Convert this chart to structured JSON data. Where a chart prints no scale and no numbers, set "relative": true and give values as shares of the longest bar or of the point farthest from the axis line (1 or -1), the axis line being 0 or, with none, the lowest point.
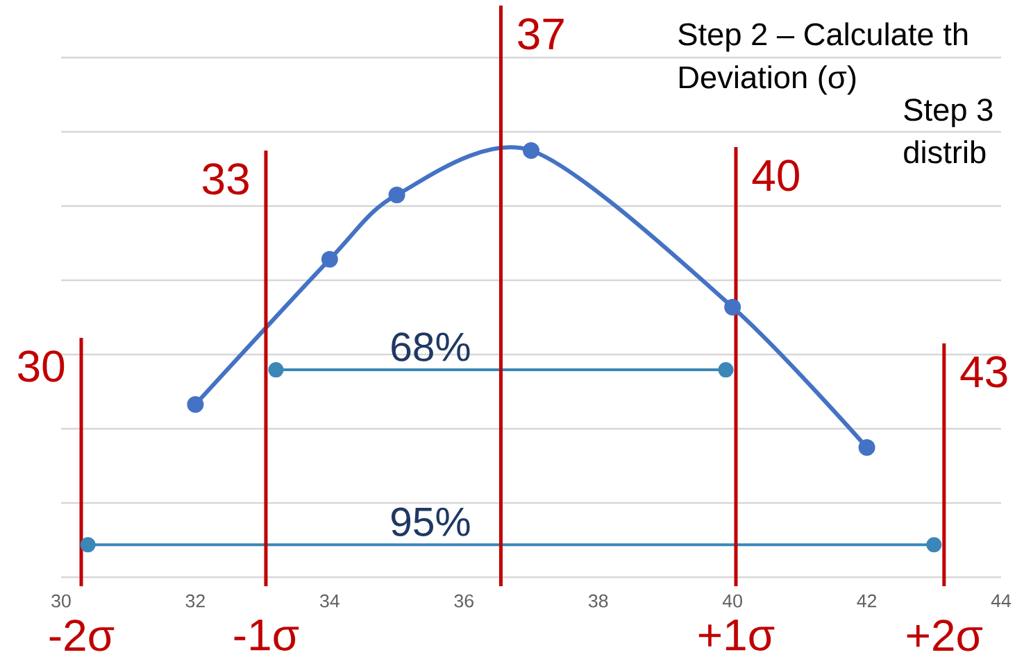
{
  "chart_data": {
    "type": "line",
    "relative": true,
    "x": [
      32,
      34,
      35,
      37,
      40,
      42
    ],
    "xlim": [
      30,
      44
    ],
    "xticks": [
      30,
      32,
      34,
      36,
      38,
      40,
      42,
      44
    ],
    "grid": "y",
    "marker": "circle",
    "series": [
      {
        "color": "#4472c4",
        "values": [
          0.405,
          0.745,
          0.896,
          1,
          0.633,
          0.304
        ]
      },
      {
        "color": "#3a87b8",
        "x": [
          33.2,
          39.9
        ],
        "values": [
          0.486,
          0.486
        ]
      },
      {
        "color": "#3a87b8",
        "x": [
          30.4,
          43.0
        ],
        "values": [
          0.076,
          0.076
        ]
      }
    ],
    "ref_lines": [
      {
        "axis": "x",
        "value": 30.3,
        "label": "30",
        "color": "#c00000"
      },
      {
        "axis": "x",
        "value": 33.05,
        "label": "33",
        "color": "#c00000"
      },
      {
        "axis": "x",
        "value": 36.55,
        "label": "37",
        "color": "#c00000"
      },
      {
        "axis": "x",
        "value": 40.05,
        "label": "40",
        "color": "#c00000"
      },
      {
        "axis": "x",
        "value": 43.15,
        "label": "43",
        "color": "#c00000"
      }
    ],
    "annotations": [
      "Step 2 – Calculate th",
      "Deviation (σ)",
      "Step 3",
      "distrib",
      {
        "text": "68%",
        "x": 35.5,
        "y": 0.486
      },
      {
        "text": "95%",
        "x": 35.5,
        "y": 0.076
      },
      "-2σ",
      "-1σ",
      "+1σ",
      "+2σ"
    ]
  }
}
